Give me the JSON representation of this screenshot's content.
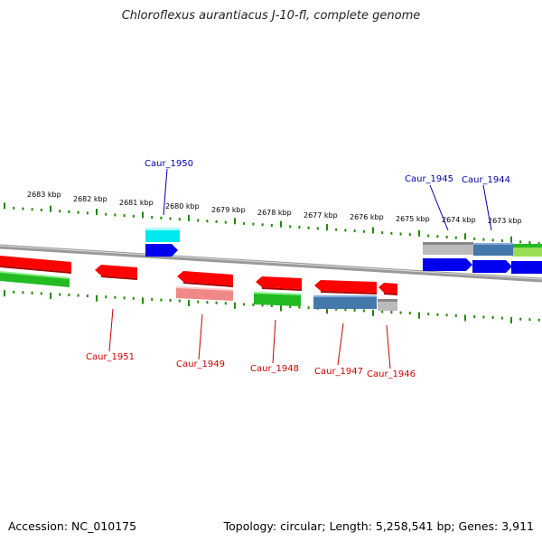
{
  "title": "Chloroflexus aurantiacus J-10-fl, complete genome",
  "footer": {
    "accession": "Accession: NC_010175",
    "topology": "Topology: circular; Length: 5,258,541 bp; Genes: 3,911"
  },
  "scale": {
    "tick_labels": [
      "2683 kbp",
      "2682 kbp",
      "2681 kbp",
      "2680 kbp",
      "2679 kbp",
      "2678 kbp",
      "2677 kbp",
      "2676 kbp",
      "2675 kbp",
      "2674 kbp",
      "2673 kbp"
    ]
  },
  "genes": [
    {
      "name": "Caur_1951",
      "strand": "minus"
    },
    {
      "name": "Caur_1950",
      "strand": "plus"
    },
    {
      "name": "Caur_1949",
      "strand": "minus"
    },
    {
      "name": "Caur_1948",
      "strand": "minus"
    },
    {
      "name": "Caur_1947",
      "strand": "minus"
    },
    {
      "name": "Caur_1946",
      "strand": "minus"
    },
    {
      "name": "Caur_1945",
      "strand": "plus"
    },
    {
      "name": "Caur_1944",
      "strand": "plus"
    }
  ],
  "colors": {
    "cds_minus": "#ff0000",
    "cds_plus": "#0000ee",
    "rna_cyan": "#00e8f0",
    "feature_green": "#22bb22",
    "feature_pink": "#f08888",
    "feature_steelblue": "#4477aa",
    "feature_gray": "#bbbbbb",
    "feature_lightgreen": "#99dd55",
    "ruler_green": "#228800",
    "label_plus": "#0000aa",
    "label_minus": "#cc0000",
    "backbone": "#888888"
  }
}
